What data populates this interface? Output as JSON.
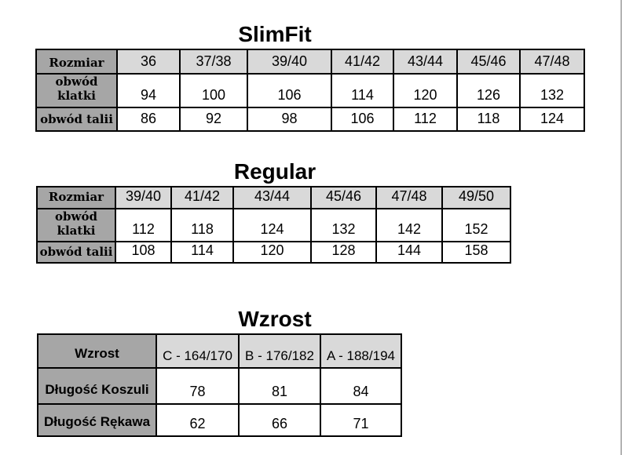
{
  "colors": {
    "label_cell_bg": "#a6a6a6",
    "header_cell_bg": "#d9d9d9",
    "table_border": "#000000",
    "page_edge": "#b3b3b3"
  },
  "tables": [
    {
      "id": "slimfit",
      "title": "SlimFit",
      "corner_label": "Rozmiar",
      "column_headers": [
        "36",
        "37/38",
        "39/40",
        "41/42",
        "43/44",
        "45/46",
        "47/48"
      ],
      "rows": [
        {
          "label": "obwód\nklatki",
          "values": [
            "94",
            "100",
            "106",
            "114",
            "120",
            "126",
            "132"
          ]
        },
        {
          "label": "obwód talii",
          "values": [
            "86",
            "92",
            "98",
            "106",
            "112",
            "118",
            "124"
          ]
        }
      ]
    },
    {
      "id": "regular",
      "title": "Regular",
      "corner_label": "Rozmiar",
      "column_headers": [
        "39/40",
        "41/42",
        "43/44",
        "45/46",
        "47/48",
        "49/50"
      ],
      "rows": [
        {
          "label": "obwód\nklatki",
          "values": [
            "112",
            "118",
            "124",
            "132",
            "142",
            "152"
          ]
        },
        {
          "label": "obwód talii",
          "values": [
            "108",
            "114",
            "120",
            "128",
            "144",
            "158"
          ]
        }
      ]
    },
    {
      "id": "wzrost",
      "title": "Wzrost",
      "corner_label": "Wzrost",
      "column_headers": [
        "C - 164/170",
        "B - 176/182",
        "A - 188/194"
      ],
      "rows": [
        {
          "label": "Długość Koszuli",
          "values": [
            "78",
            "81",
            "84"
          ]
        },
        {
          "label": "Długość Rękawa",
          "values": [
            "62",
            "66",
            "71"
          ]
        }
      ]
    }
  ]
}
